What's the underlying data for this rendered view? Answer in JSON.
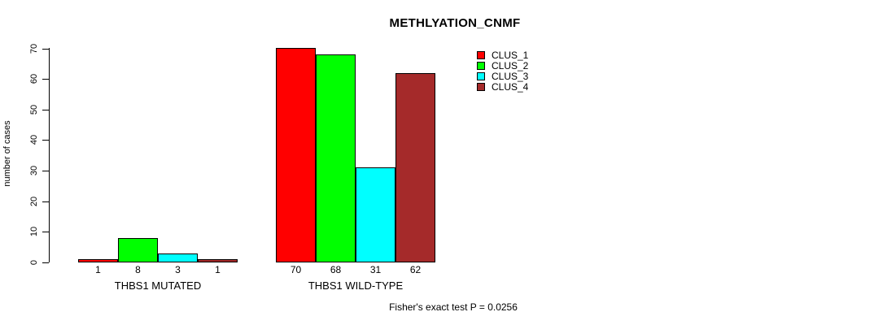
{
  "chart_data": {
    "type": "bar",
    "title": "METHLYATION_CNMF",
    "ylabel": "number of cases",
    "xlabel": "",
    "ylim": [
      0,
      70
    ],
    "yticks": [
      0,
      10,
      20,
      30,
      40,
      50,
      60,
      70
    ],
    "grid": false,
    "legend_position": "top-right",
    "categories": [
      "THBS1 MUTATED",
      "THBS1 WILD-TYPE"
    ],
    "series": [
      {
        "name": "CLUS_1",
        "color": "#ff0000",
        "values": [
          1,
          70
        ]
      },
      {
        "name": "CLUS_2",
        "color": "#00ff00",
        "values": [
          8,
          68
        ]
      },
      {
        "name": "CLUS_3",
        "color": "#00ffff",
        "values": [
          3,
          31
        ]
      },
      {
        "name": "CLUS_4",
        "color": "#a52a2a",
        "values": [
          1,
          62
        ]
      }
    ],
    "bar_value_labels": [
      [
        1,
        8,
        3,
        1
      ],
      [
        70,
        68,
        31,
        62
      ]
    ],
    "annotation": "Fisher's exact test P = 0.0256"
  }
}
